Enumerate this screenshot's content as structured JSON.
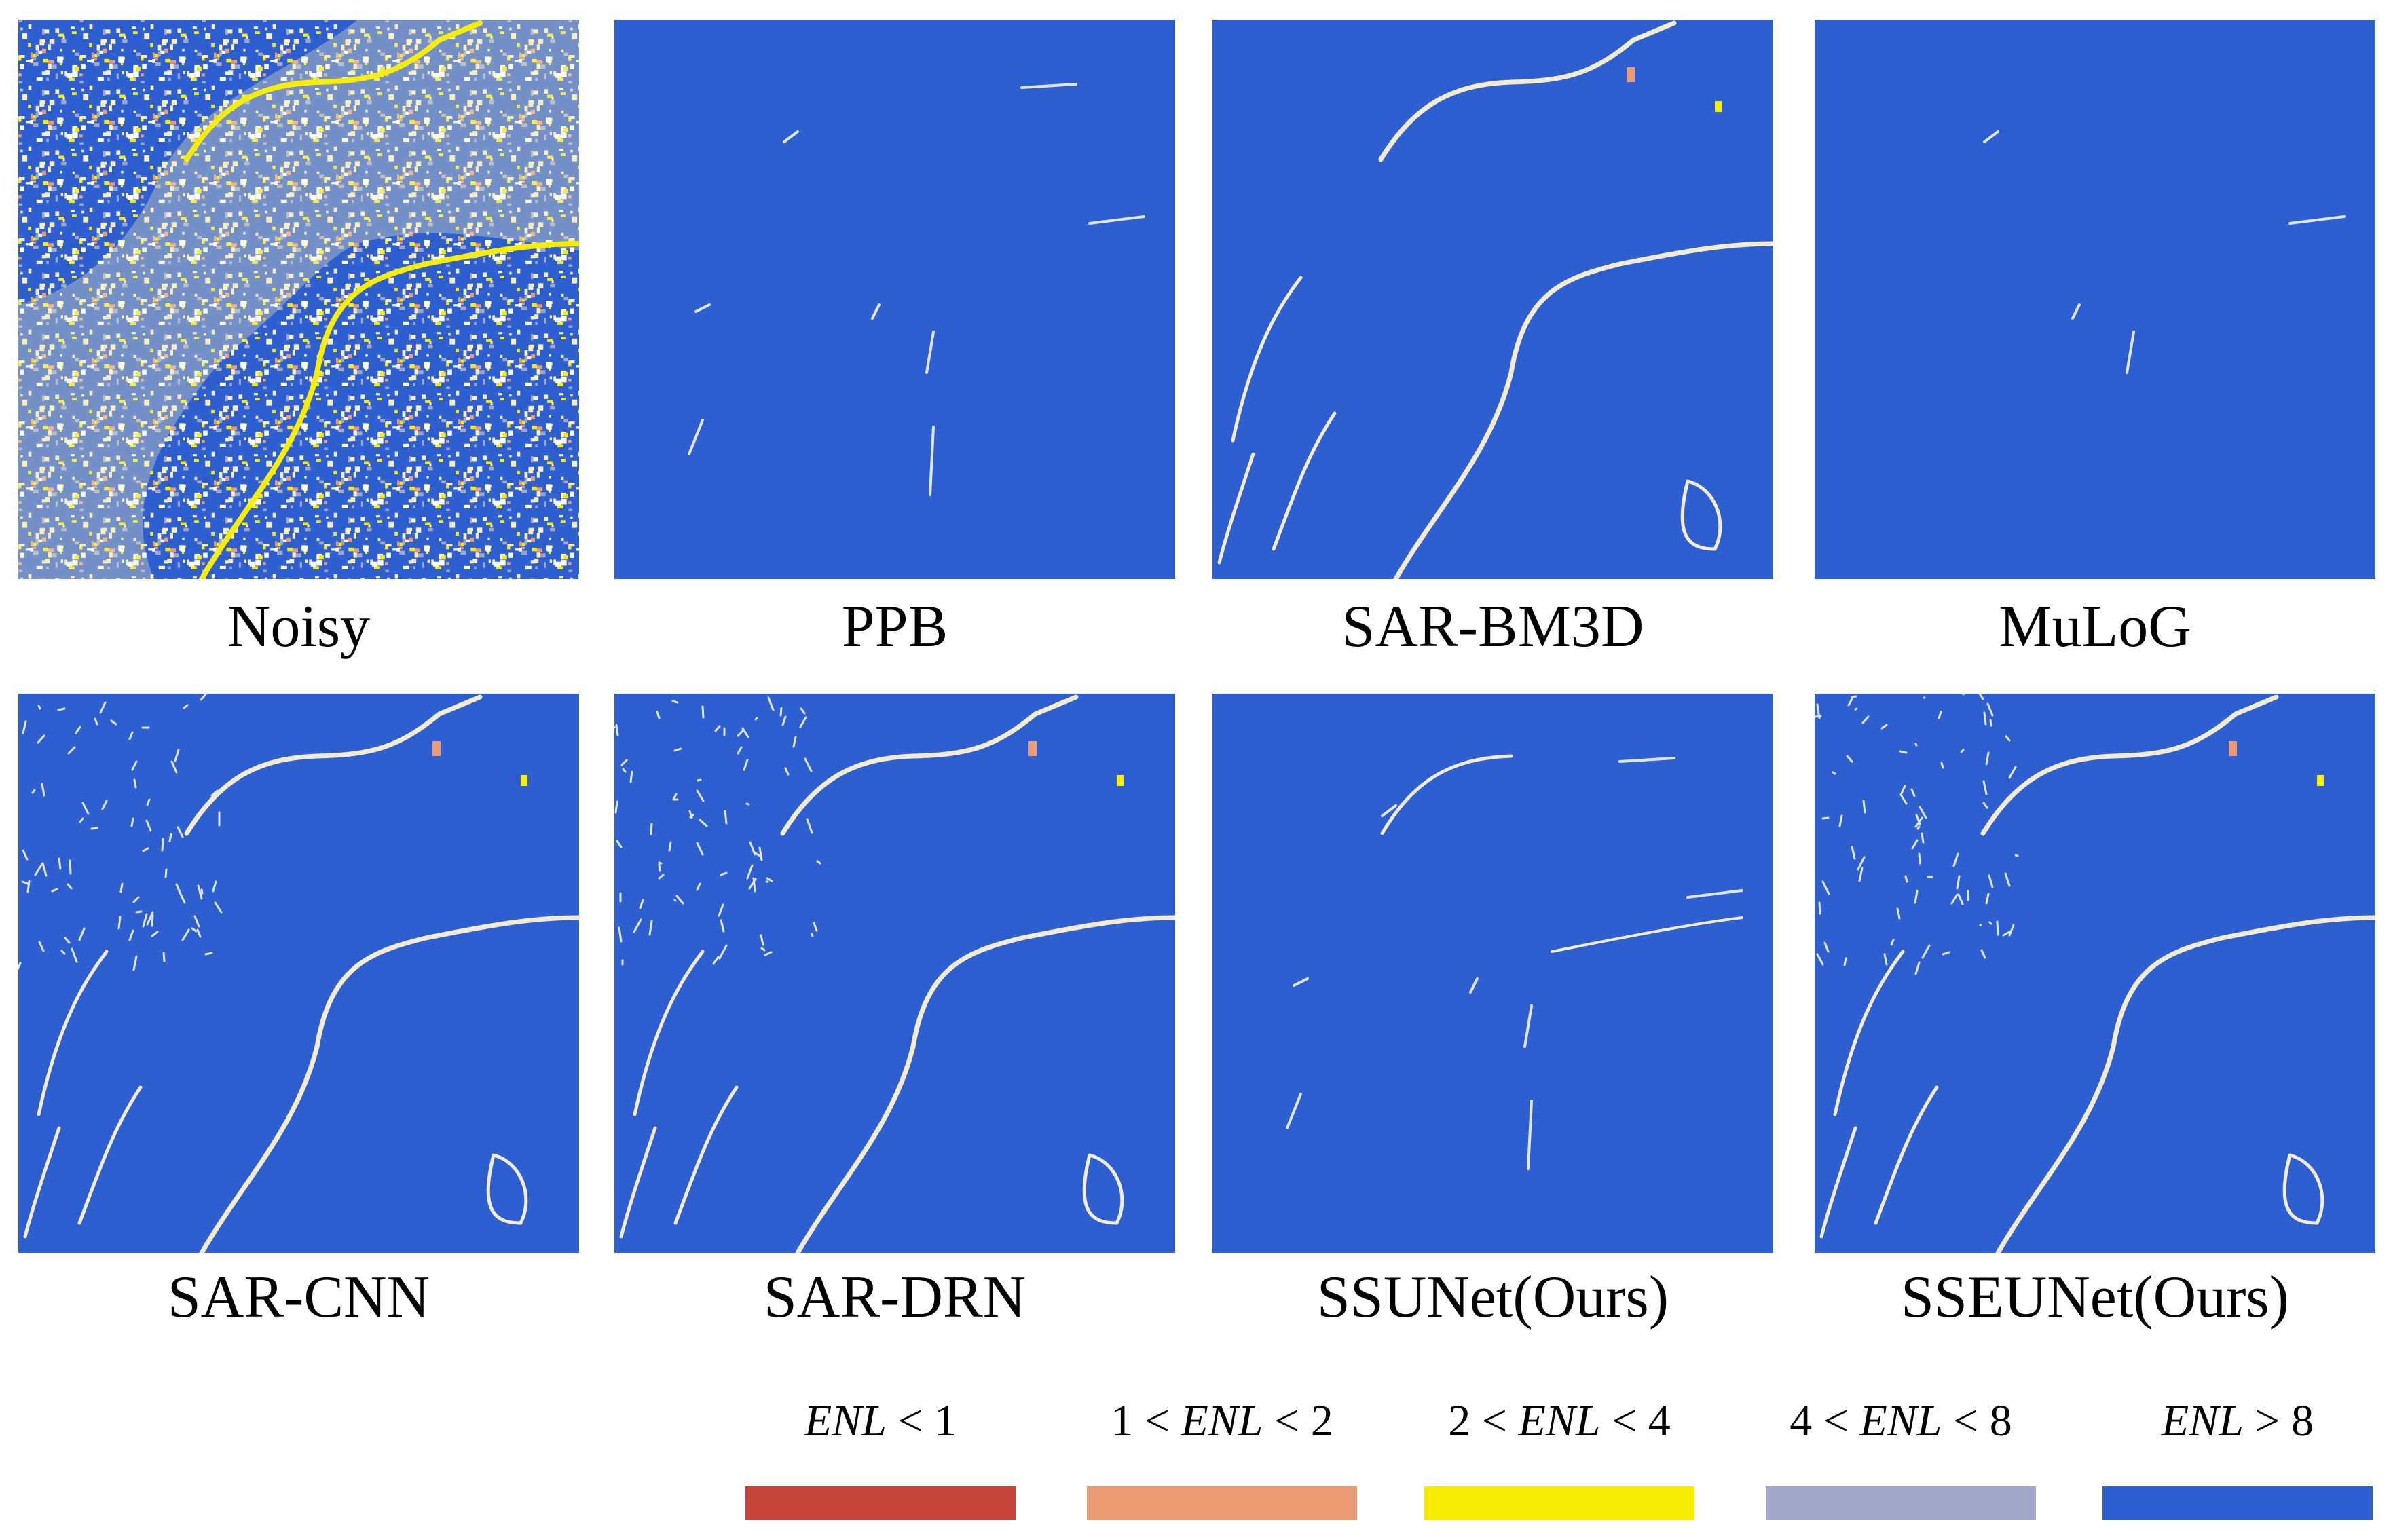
{
  "panels": [
    "Noisy",
    "PPB",
    "SAR-BM3D",
    "MuLoG",
    "SAR-CNN",
    "SAR-DRN",
    "SSUNet(Ours)",
    "SSEUNet(Ours)"
  ],
  "legend": [
    {
      "parts": [
        {
          "text": "ENL",
          "italic": true
        },
        {
          "text": " < 1"
        }
      ],
      "color": "#c5443a"
    },
    {
      "parts": [
        {
          "text": "1 < "
        },
        {
          "text": "ENL",
          "italic": true
        },
        {
          "text": " < 2"
        }
      ],
      "color": "#eb9b74"
    },
    {
      "parts": [
        {
          "text": "2 < "
        },
        {
          "text": "ENL",
          "italic": true
        },
        {
          "text": " < 4"
        }
      ],
      "color": "#f8ee05"
    },
    {
      "parts": [
        {
          "text": "4 < "
        },
        {
          "text": "ENL",
          "italic": true
        },
        {
          "text": " < 8"
        }
      ],
      "color": "#a0a7c9"
    },
    {
      "parts": [
        {
          "text": "ENL",
          "italic": true
        },
        {
          "text": " > 8"
        }
      ],
      "color": "#2e5fd0"
    }
  ]
}
